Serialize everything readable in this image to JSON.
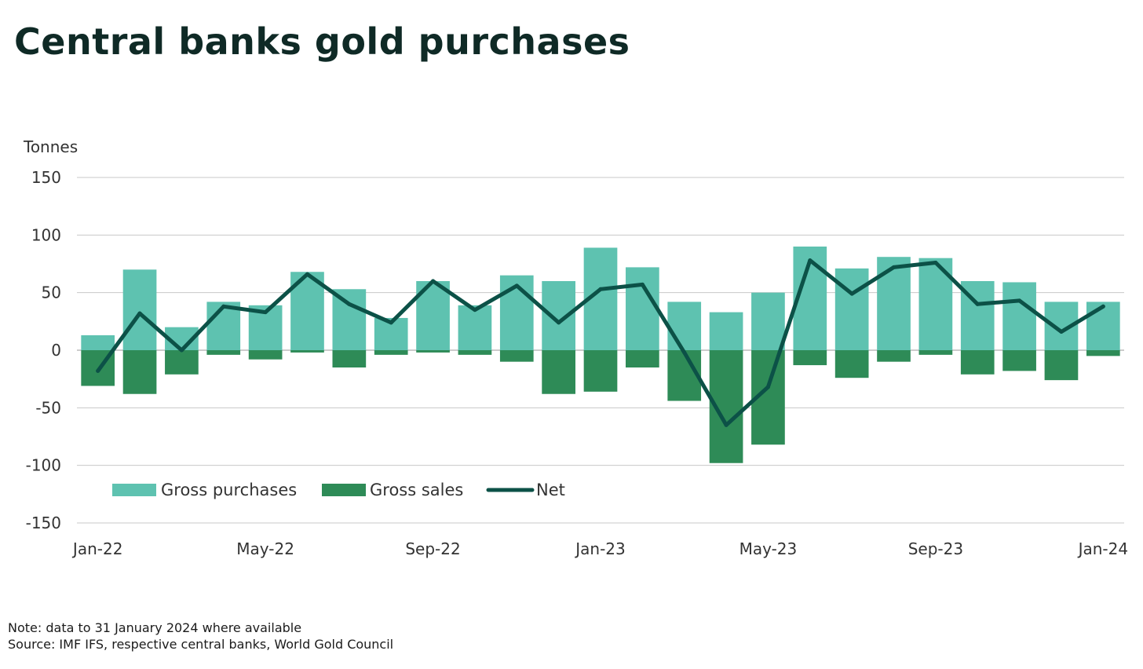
{
  "title": "Central banks gold purchases",
  "notes": {
    "note": "Note: data to 31 January 2024 where available",
    "source": "Source: IMF IFS, respective central banks, World Gold Council"
  },
  "colors": {
    "gross_purchases": "#5ec2b0",
    "gross_sales": "#2e8b57",
    "net": "#0c5147",
    "grid": "#c8c8c8",
    "text": "#333333"
  },
  "chart_data": {
    "type": "bar",
    "ylabel": "Tonnes",
    "ylim": [
      -150,
      150
    ],
    "yticks": [
      150,
      100,
      50,
      0,
      -50,
      -100,
      -150
    ],
    "grid": true,
    "legend_position": "bottom-left",
    "x": [
      "Jan-22",
      "Feb-22",
      "Mar-22",
      "Apr-22",
      "May-22",
      "Jun-22",
      "Jul-22",
      "Aug-22",
      "Sep-22",
      "Oct-22",
      "Nov-22",
      "Dec-22",
      "Jan-23",
      "Feb-23",
      "Mar-23",
      "Apr-23",
      "May-23",
      "Jun-23",
      "Jul-23",
      "Aug-23",
      "Sep-23",
      "Oct-23",
      "Nov-23",
      "Dec-23",
      "Jan-24"
    ],
    "xtick_labels": [
      "Jan-22",
      "May-22",
      "Sep-22",
      "Jan-23",
      "May-23",
      "Sep-23",
      "Jan-24"
    ],
    "series": [
      {
        "name": "Gross purchases",
        "kind": "bar",
        "values": [
          13,
          70,
          20,
          42,
          39,
          68,
          53,
          28,
          60,
          39,
          65,
          60,
          89,
          72,
          42,
          33,
          50,
          90,
          71,
          81,
          80,
          60,
          59,
          42,
          42
        ]
      },
      {
        "name": "Gross sales",
        "kind": "bar",
        "values": [
          -31,
          -38,
          -21,
          -4,
          -8,
          -2,
          -15,
          -4,
          -2,
          -4,
          -10,
          -38,
          -36,
          -15,
          -44,
          -98,
          -82,
          -13,
          -24,
          -10,
          -4,
          -21,
          -18,
          -26,
          -5
        ]
      },
      {
        "name": "Net",
        "kind": "line",
        "values": [
          -18,
          32,
          0,
          38,
          33,
          66,
          40,
          24,
          60,
          35,
          56,
          24,
          53,
          57,
          -2,
          -65,
          -32,
          78,
          49,
          72,
          76,
          40,
          43,
          16,
          38
        ]
      }
    ]
  }
}
